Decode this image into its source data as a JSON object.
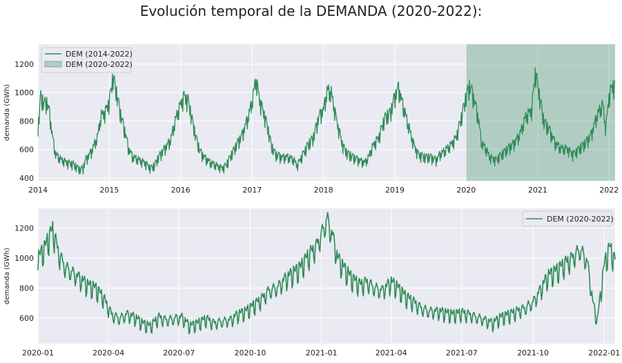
{
  "title": "Evolución temporal de la DEMANDA (2020-2022):",
  "colors": {
    "line": "#2e8b57",
    "band": "#2e8b57",
    "plot_bg": "#eaeaf2",
    "grid": "#ffffff"
  },
  "chart_data": [
    {
      "type": "line",
      "ylabel": "demanda (GWh)",
      "xlabel": "",
      "xlim": [
        "2014-01-01",
        "2022-02-01"
      ],
      "ylim": [
        380,
        1340
      ],
      "xticks": [
        "2014",
        "2015",
        "2016",
        "2017",
        "2018",
        "2019",
        "2020",
        "2021",
        "2022"
      ],
      "yticks": [
        400,
        600,
        800,
        1000,
        1200
      ],
      "grid": true,
      "legend_position": "upper-left",
      "series": [
        {
          "name": "DEM (2014-2022)",
          "kind": "line",
          "x": [
            "2014-01-01",
            "2014-01-15",
            "2014-02-01",
            "2014-02-15",
            "2014-03-01",
            "2014-03-15",
            "2014-04-01",
            "2014-04-15",
            "2014-05-01",
            "2014-06-01",
            "2014-07-01",
            "2014-08-01",
            "2014-08-20",
            "2014-09-01",
            "2014-10-01",
            "2014-11-01",
            "2014-11-20",
            "2014-12-10",
            "2015-01-01",
            "2015-01-20",
            "2015-02-10",
            "2015-03-01",
            "2015-03-20",
            "2015-04-10",
            "2015-05-01",
            "2015-06-01",
            "2015-07-01",
            "2015-08-01",
            "2015-08-20",
            "2015-09-10",
            "2015-10-10",
            "2015-11-10",
            "2015-12-10",
            "2016-01-01",
            "2016-01-20",
            "2016-02-10",
            "2016-03-01",
            "2016-03-20",
            "2016-04-10",
            "2016-05-01",
            "2016-06-01",
            "2016-07-01",
            "2016-08-01",
            "2016-08-20",
            "2016-09-10",
            "2016-10-10",
            "2016-11-10",
            "2016-12-10",
            "2017-01-01",
            "2017-01-20",
            "2017-02-10",
            "2017-03-01",
            "2017-03-20",
            "2017-04-10",
            "2017-05-01",
            "2017-06-01",
            "2017-07-01",
            "2017-08-01",
            "2017-08-20",
            "2017-09-10",
            "2017-10-10",
            "2017-11-10",
            "2017-12-10",
            "2018-01-01",
            "2018-01-20",
            "2018-02-10",
            "2018-03-01",
            "2018-03-20",
            "2018-04-10",
            "2018-05-01",
            "2018-06-01",
            "2018-07-01",
            "2018-08-01",
            "2018-08-20",
            "2018-09-10",
            "2018-10-10",
            "2018-11-10",
            "2018-12-10",
            "2019-01-01",
            "2019-01-20",
            "2019-02-10",
            "2019-03-01",
            "2019-03-20",
            "2019-04-10",
            "2019-05-01",
            "2019-06-01",
            "2019-07-01",
            "2019-08-01",
            "2019-08-20",
            "2019-09-10",
            "2019-10-10",
            "2019-11-10",
            "2019-12-10",
            "2020-01-01",
            "2020-01-20",
            "2020-02-10",
            "2020-03-01",
            "2020-03-20",
            "2020-04-10",
            "2020-05-01",
            "2020-06-01",
            "2020-07-01",
            "2020-08-01",
            "2020-09-01",
            "2020-10-01",
            "2020-11-01",
            "2020-12-01",
            "2020-12-20",
            "2021-01-10",
            "2021-02-01",
            "2021-03-01",
            "2021-04-01",
            "2021-05-01",
            "2021-06-01",
            "2021-07-01",
            "2021-08-01",
            "2021-09-01",
            "2021-10-01",
            "2021-11-01",
            "2021-12-01",
            "2021-12-15",
            "2022-01-01",
            "2022-01-20",
            "2022-02-01"
          ],
          "y": [
            760,
            1000,
            940,
            960,
            880,
            720,
            580,
            560,
            540,
            520,
            510,
            470,
            480,
            540,
            600,
            700,
            860,
            880,
            960,
            1140,
            1000,
            860,
            760,
            620,
            560,
            540,
            520,
            480,
            500,
            560,
            620,
            680,
            850,
            940,
            1000,
            960,
            820,
            700,
            600,
            560,
            520,
            500,
            480,
            500,
            560,
            640,
            720,
            840,
            960,
            1120,
            960,
            880,
            780,
            640,
            580,
            560,
            560,
            540,
            500,
            560,
            640,
            700,
            860,
            900,
            1040,
            1020,
            880,
            760,
            640,
            590,
            560,
            540,
            520,
            560,
            640,
            700,
            840,
            880,
            1000,
            1060,
            940,
            840,
            740,
            640,
            580,
            560,
            560,
            540,
            580,
            600,
            640,
            700,
            860,
            1000,
            1080,
            980,
            860,
            660,
            620,
            560,
            540,
            580,
            620,
            660,
            720,
            850,
            900,
            1180,
            1000,
            820,
            760,
            660,
            620,
            620,
            580,
            620,
            660,
            720,
            860,
            940,
            760,
            1000,
            1080,
            1060
          ]
        },
        {
          "name": "DEM (2020-2022)",
          "kind": "band",
          "x_range": [
            "2020-01-01",
            "2022-02-01"
          ]
        }
      ]
    },
    {
      "type": "line",
      "ylabel": "demanda (GWh)",
      "xlabel": "",
      "xlim": [
        "2020-01-01",
        "2022-01-15"
      ],
      "ylim": [
        430,
        1330
      ],
      "xticks": [
        "2020-01",
        "2020-04",
        "2020-07",
        "2020-10",
        "2021-01",
        "2021-04",
        "2021-07",
        "2021-10",
        "2022-01"
      ],
      "yticks": [
        600,
        800,
        1000,
        1200
      ],
      "grid": true,
      "legend_position": "upper-right",
      "series": [
        {
          "name": "DEM (2020-2022)",
          "x": [
            "2020-01-01",
            "2020-01-10",
            "2020-01-20",
            "2020-01-28",
            "2020-02-05",
            "2020-02-15",
            "2020-02-25",
            "2020-03-05",
            "2020-03-15",
            "2020-03-25",
            "2020-04-05",
            "2020-04-15",
            "2020-04-25",
            "2020-05-05",
            "2020-05-15",
            "2020-05-25",
            "2020-06-05",
            "2020-06-15",
            "2020-06-25",
            "2020-07-05",
            "2020-07-15",
            "2020-07-25",
            "2020-08-05",
            "2020-08-15",
            "2020-08-25",
            "2020-09-05",
            "2020-09-15",
            "2020-09-25",
            "2020-10-05",
            "2020-10-15",
            "2020-10-25",
            "2020-11-05",
            "2020-11-15",
            "2020-11-25",
            "2020-12-05",
            "2020-12-15",
            "2020-12-25",
            "2021-01-01",
            "2021-01-08",
            "2021-01-15",
            "2021-01-22",
            "2021-02-01",
            "2021-02-10",
            "2021-02-20",
            "2021-03-01",
            "2021-03-10",
            "2021-03-20",
            "2021-04-01",
            "2021-04-10",
            "2021-04-20",
            "2021-05-01",
            "2021-05-10",
            "2021-05-20",
            "2021-06-01",
            "2021-06-10",
            "2021-06-20",
            "2021-07-01",
            "2021-07-10",
            "2021-07-20",
            "2021-08-01",
            "2021-08-10",
            "2021-08-20",
            "2021-09-01",
            "2021-09-10",
            "2021-09-20",
            "2021-10-01",
            "2021-10-10",
            "2021-10-20",
            "2021-11-01",
            "2021-11-10",
            "2021-11-20",
            "2021-12-01",
            "2021-12-10",
            "2021-12-18",
            "2021-12-23",
            "2022-01-01",
            "2022-01-08",
            "2022-01-15"
          ],
          "y": [
            1020,
            1100,
            1220,
            1050,
            960,
            920,
            880,
            840,
            820,
            760,
            640,
            610,
            640,
            620,
            580,
            560,
            620,
            600,
            610,
            620,
            560,
            580,
            610,
            580,
            590,
            600,
            640,
            660,
            700,
            740,
            800,
            820,
            880,
            920,
            960,
            1040,
            1100,
            1180,
            1290,
            1180,
            1020,
            940,
            880,
            840,
            860,
            820,
            800,
            860,
            820,
            760,
            720,
            680,
            660,
            660,
            650,
            640,
            650,
            640,
            620,
            600,
            580,
            620,
            640,
            660,
            680,
            720,
            800,
            900,
            940,
            980,
            1020,
            1080,
            1000,
            700,
            600,
            980,
            1100,
            1000
          ]
        }
      ]
    }
  ]
}
